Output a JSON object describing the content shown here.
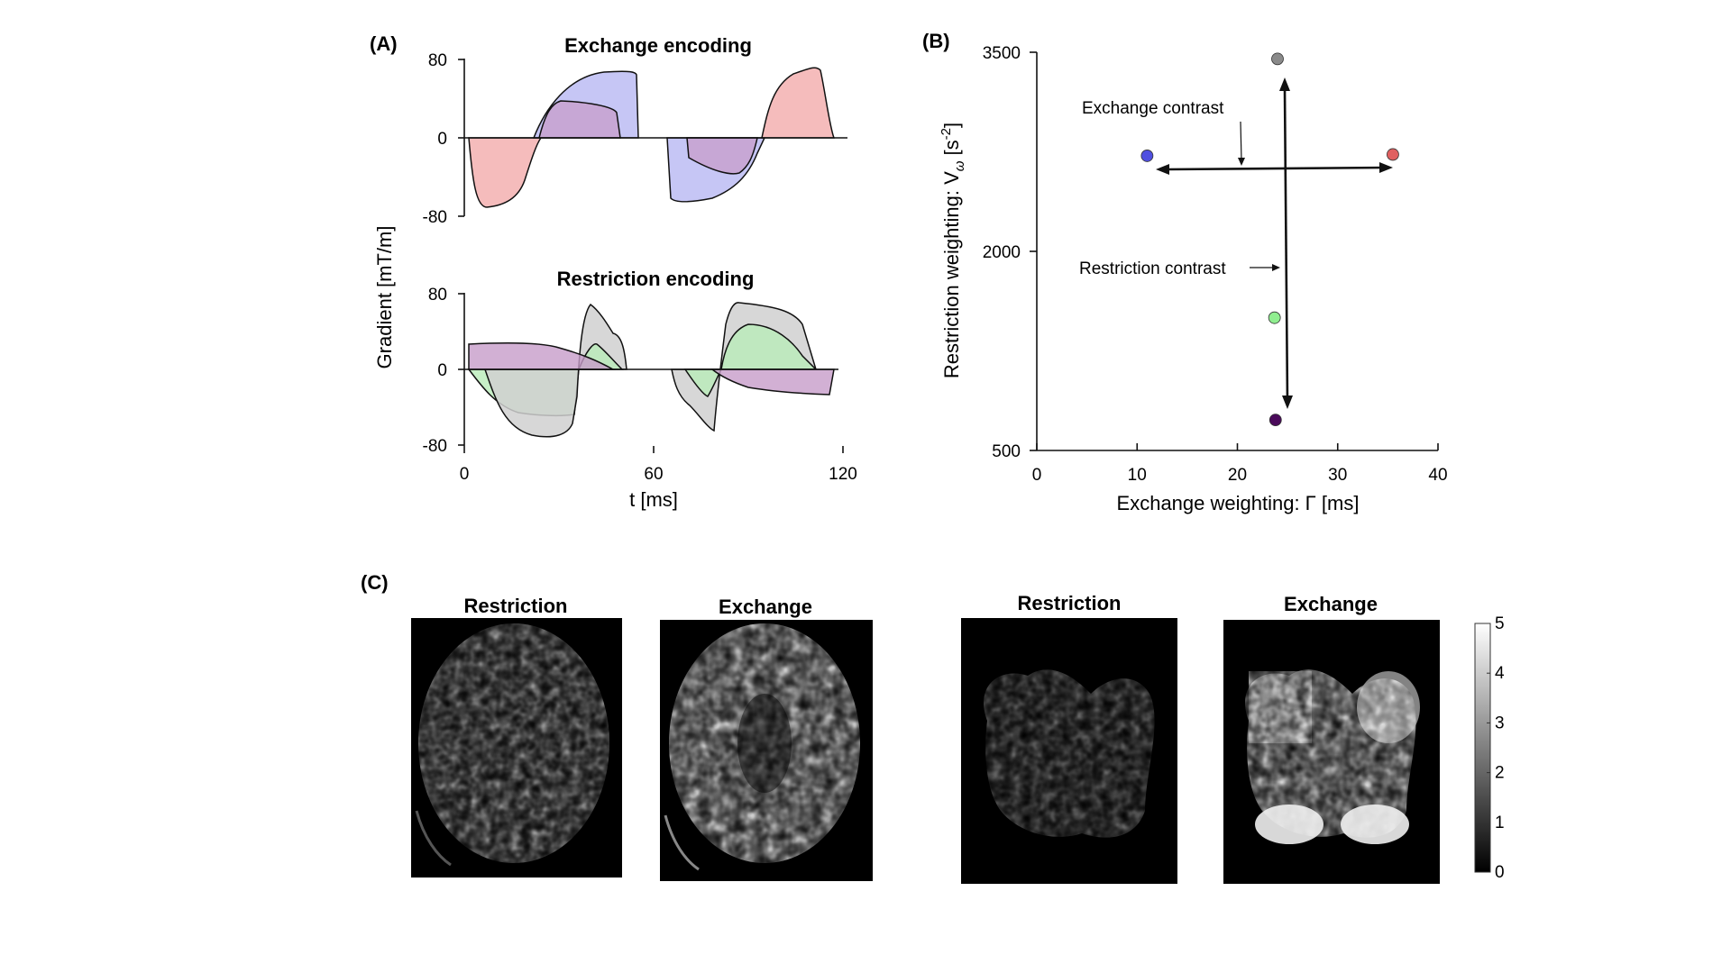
{
  "panel_a": {
    "label": "(A)",
    "ylabel": "Gradient [mT/m]",
    "xlabel": "t [ms]",
    "x_ticks": [
      "0",
      "60",
      "120"
    ],
    "top": {
      "title": "Exchange encoding",
      "y_ticks": [
        "80",
        "0",
        "-80"
      ],
      "series_colors": {
        "red": "#f2a5a5",
        "blue": "#b3b3f2",
        "purple": "#c79cc9"
      }
    },
    "bottom": {
      "title": "Restriction encoding",
      "y_ticks": [
        "80",
        "0",
        "-80"
      ],
      "series_colors": {
        "gray": "#d0d0d0",
        "green": "#b9ecb9",
        "purple": "#c79cc9"
      }
    }
  },
  "chart_data": {
    "type": "scatter",
    "label": "(B)",
    "xlabel": "Exchange weighting: Γ [ms]",
    "ylabel_prefix": "Restriction weighting: V",
    "ylabel_sub": "ω",
    "ylabel_unit_open": " [s",
    "ylabel_sup": "-2",
    "ylabel_unit_close": "]",
    "xlim": [
      0,
      40
    ],
    "ylim": [
      500,
      3500
    ],
    "x_ticks": [
      0,
      10,
      20,
      30,
      40
    ],
    "y_ticks": [
      500,
      2000,
      3500
    ],
    "points": [
      {
        "x": 24,
        "y": 3450,
        "color": "#8a8a8a"
      },
      {
        "x": 11,
        "y": 2720,
        "color": "#5050e0"
      },
      {
        "x": 35.5,
        "y": 2730,
        "color": "#e06060"
      },
      {
        "x": 23.7,
        "y": 1500,
        "color": "#90ee90"
      },
      {
        "x": 23.8,
        "y": 730,
        "color": "#4a0a5a"
      }
    ],
    "annotations": {
      "exchange_contrast": "Exchange contrast",
      "restriction_contrast": "Restriction contrast"
    }
  },
  "panel_c": {
    "label": "(C)",
    "images": [
      {
        "title": "Restriction"
      },
      {
        "title": "Exchange"
      },
      {
        "title": "Restriction"
      },
      {
        "title": "Exchange"
      }
    ],
    "colorbar_ticks": [
      "5",
      "4",
      "3",
      "2",
      "1",
      "0"
    ]
  }
}
